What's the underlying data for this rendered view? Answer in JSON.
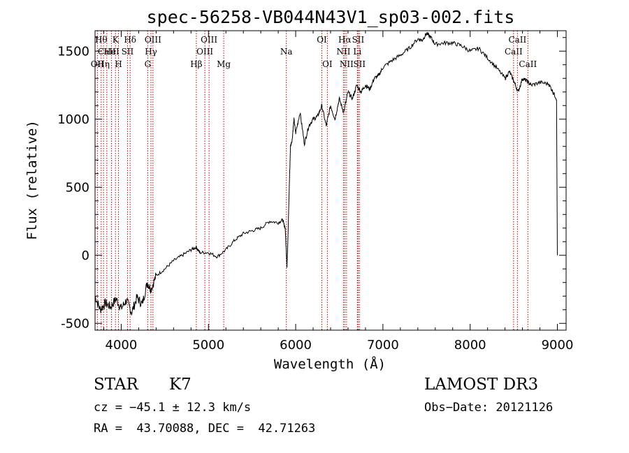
{
  "chart_data": {
    "type": "line",
    "title": "spec-56258-VB044N43V1_sp03-002.fits",
    "xlabel": "Wavelength (Å)",
    "ylabel": "Flux (relative)",
    "xlim": [
      3700,
      9100
    ],
    "ylim": [
      -550,
      1650
    ],
    "xticks": [
      4000,
      5000,
      6000,
      7000,
      8000,
      9000
    ],
    "yticks": [
      -500,
      0,
      500,
      1000,
      1500
    ],
    "grid": false,
    "series": [
      {
        "color": "#000000",
        "x": [
          3700,
          3760,
          3820,
          3880,
          3940,
          4000,
          4060,
          4120,
          4180,
          4240,
          4300,
          4340,
          4400,
          4500,
          4600,
          4700,
          4800,
          4860,
          4900,
          5000,
          5100,
          5200,
          5300,
          5400,
          5500,
          5600,
          5700,
          5800,
          5850,
          5880,
          5900,
          5910,
          5920,
          5940,
          5960,
          5980,
          6000,
          6050,
          6100,
          6150,
          6200,
          6250,
          6300,
          6350,
          6400,
          6450,
          6500,
          6550,
          6600,
          6650,
          6700,
          6750,
          6800,
          6850,
          6900,
          6950,
          7000,
          7100,
          7200,
          7300,
          7400,
          7450,
          7500,
          7550,
          7600,
          7700,
          7800,
          7900,
          8000,
          8100,
          8200,
          8300,
          8400,
          8450,
          8500,
          8550,
          8600,
          8650,
          8700,
          8800,
          8900,
          8950,
          8990,
          9000
        ],
        "y": [
          -300,
          -400,
          -350,
          -380,
          -320,
          -390,
          -330,
          -420,
          -310,
          -360,
          -200,
          -250,
          -150,
          -100,
          -40,
          0,
          40,
          60,
          20,
          20,
          -10,
          40,
          110,
          160,
          180,
          200,
          250,
          240,
          260,
          200,
          -80,
          100,
          350,
          800,
          850,
          1000,
          900,
          1050,
          820,
          950,
          1000,
          1020,
          1100,
          950,
          1100,
          1000,
          1150,
          1050,
          1200,
          1150,
          1250,
          1200,
          1250,
          1220,
          1300,
          1320,
          1380,
          1430,
          1470,
          1520,
          1590,
          1580,
          1630,
          1600,
          1550,
          1560,
          1560,
          1540,
          1500,
          1520,
          1450,
          1380,
          1300,
          1350,
          1280,
          1200,
          1300,
          1280,
          1250,
          1270,
          1260,
          1200,
          1150,
          0
        ]
      }
    ],
    "line_markers": [
      {
        "wl": 3727,
        "labels": [
          "OII"
        ],
        "row": 3
      },
      {
        "wl": 3770,
        "labels": [
          "Hθ"
        ],
        "row": 1
      },
      {
        "wl": 3797,
        "labels": [
          "Hη"
        ],
        "row": 3
      },
      {
        "wl": 3835,
        "labels": [
          "CaII"
        ],
        "row": 2
      },
      {
        "wl": 3889,
        "labels": [
          "HeI"
        ],
        "row": 2
      },
      {
        "wl": 3934,
        "labels": [
          "K"
        ],
        "row": 1
      },
      {
        "wl": 3969,
        "labels": [
          "H"
        ],
        "row": 3
      },
      {
        "wl": 4072,
        "labels": [
          "SII"
        ],
        "row": 2
      },
      {
        "wl": 4102,
        "labels": [
          "Hδ"
        ],
        "row": 1
      },
      {
        "wl": 4304,
        "labels": [
          "G"
        ],
        "row": 3
      },
      {
        "wl": 4341,
        "labels": [
          "Hγ"
        ],
        "row": 2
      },
      {
        "wl": 4364,
        "labels": [
          "OIII"
        ],
        "row": 1
      },
      {
        "wl": 4861,
        "labels": [
          "Hβ"
        ],
        "row": 3
      },
      {
        "wl": 4959,
        "labels": [
          "OIII"
        ],
        "row": 2
      },
      {
        "wl": 5007,
        "labels": [
          "OIII"
        ],
        "row": 1
      },
      {
        "wl": 5175,
        "labels": [
          "Mg"
        ],
        "row": 3
      },
      {
        "wl": 5893,
        "labels": [
          "Na"
        ],
        "row": 2
      },
      {
        "wl": 6300,
        "labels": [
          "OI"
        ],
        "row": 1
      },
      {
        "wl": 6363,
        "labels": [
          "OI"
        ],
        "row": 3
      },
      {
        "wl": 6548,
        "labels": [
          "NII"
        ],
        "row": 2
      },
      {
        "wl": 6563,
        "labels": [
          "Hα"
        ],
        "row": 1
      },
      {
        "wl": 6583,
        "labels": [
          "NII"
        ],
        "row": 3
      },
      {
        "wl": 6707,
        "labels": [
          "Li"
        ],
        "row": 2
      },
      {
        "wl": 6716,
        "labels": [
          "SII"
        ],
        "row": 1
      },
      {
        "wl": 6731,
        "labels": [
          "SII"
        ],
        "row": 3
      },
      {
        "wl": 8498,
        "labels": [
          "CaII"
        ],
        "row": 2
      },
      {
        "wl": 8542,
        "labels": [
          "CaII"
        ],
        "row": 1
      },
      {
        "wl": 8662,
        "labels": [
          "CaII"
        ],
        "row": 3
      }
    ]
  },
  "info": {
    "class": "STAR",
    "subclass": "K7",
    "survey": "LAMOST DR3",
    "cz": "cz = −45.1 ± 12.3 km/s",
    "obs_date": "Obs−Date: 20121126",
    "radec": "RA =  43.70088, DEC =  42.71263"
  }
}
